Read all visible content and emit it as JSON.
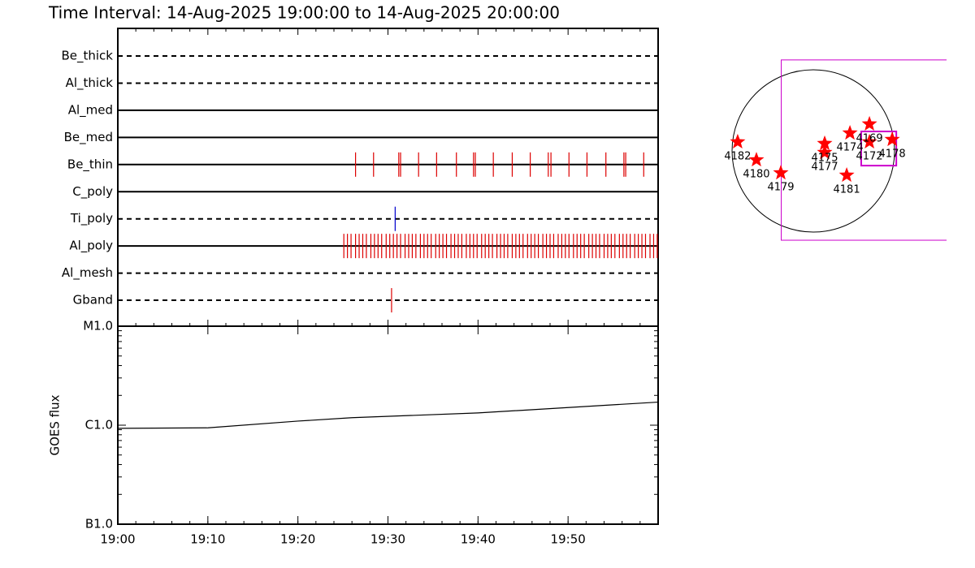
{
  "title": "Time Interval: 14-Aug-2025 19:00:00 to 14-Aug-2025 20:00:00",
  "chart_data": [
    {
      "type": "timeline",
      "categories": [
        "Be_thick",
        "Al_thick",
        "Al_med",
        "Be_med",
        "Be_thin",
        "C_poly",
        "Ti_poly",
        "Al_poly",
        "Al_mesh",
        "Gband"
      ],
      "styles": [
        "dashed",
        "dashed",
        "solid",
        "solid",
        "solid",
        "solid",
        "dashed",
        "solid",
        "dashed",
        "dashed"
      ],
      "events": [
        {
          "filter": "Be_thin",
          "color": "#dd0000",
          "x": [
            26.4,
            28.4,
            31.2,
            31.4,
            33.4,
            35.4,
            37.6,
            39.5,
            39.7,
            41.7,
            43.8,
            45.8,
            47.8,
            48.1,
            50.1,
            52.1,
            54.2,
            56.2,
            56.4,
            58.4
          ]
        },
        {
          "filter": "Ti_poly",
          "color": "#0000cc",
          "x": [
            30.8
          ]
        },
        {
          "filter": "Al_poly",
          "color": "#dd0000",
          "x": [
            25.1,
            25.5,
            25.9,
            26.4,
            26.8,
            27.2,
            27.6,
            28.1,
            28.5,
            28.9,
            29.3,
            29.8,
            30.2,
            30.6,
            31.0,
            31.4,
            31.9,
            32.3,
            32.7,
            33.1,
            33.6,
            34.0,
            34.4,
            34.8,
            35.3,
            35.7,
            36.1,
            36.5,
            37.0,
            37.4,
            37.8,
            38.2,
            38.7,
            39.1,
            39.5,
            39.9,
            40.4,
            40.8,
            41.2,
            41.6,
            42.1,
            42.5,
            42.9,
            43.3,
            43.8,
            44.2,
            44.6,
            45.0,
            45.5,
            45.9,
            46.3,
            46.7,
            47.2,
            47.6,
            48.0,
            48.4,
            48.9,
            49.3,
            49.7,
            50.1,
            50.6,
            51.0,
            51.4,
            51.8,
            52.3,
            52.7,
            53.1,
            53.5,
            54.0,
            54.4,
            54.8,
            55.2,
            55.7,
            56.1,
            56.5,
            56.9,
            57.4,
            57.8,
            58.2,
            58.6,
            59.1,
            59.5,
            59.9
          ]
        },
        {
          "filter": "Gband",
          "color": "#dd0000",
          "x": [
            30.4
          ]
        }
      ],
      "xlim": [
        0,
        60
      ]
    },
    {
      "type": "line",
      "ylabel": "GOES flux",
      "log_scale": true,
      "x": [
        0,
        10,
        20,
        26,
        40,
        60
      ],
      "values": [
        9.3e-07,
        9.4e-07,
        1.1e-06,
        1.19e-06,
        1.33e-06,
        1.71e-06
      ],
      "color": "#000000",
      "xlim": [
        0,
        60
      ],
      "xticks": [
        {
          "value": 0,
          "label": "19:00"
        },
        {
          "value": 10,
          "label": "19:10"
        },
        {
          "value": 20,
          "label": "19:20"
        },
        {
          "value": 30,
          "label": "19:30"
        },
        {
          "value": 40,
          "label": "19:40"
        },
        {
          "value": 50,
          "label": "19:50"
        }
      ],
      "ylim": [
        1e-07,
        1e-05
      ],
      "yticks": [
        {
          "value": 1e-07,
          "label": "B1.0"
        },
        {
          "value": 1e-06,
          "label": "C1.0"
        },
        {
          "value": 1e-05,
          "label": "M1.0"
        }
      ]
    },
    {
      "type": "map",
      "points": [
        {
          "label": "4182",
          "x": -884,
          "y": 105
        },
        {
          "label": "4180",
          "x": -665,
          "y": -105
        },
        {
          "label": "4179",
          "x": -380,
          "y": -257
        },
        {
          "label": "4175",
          "x": 133,
          "y": 86
        },
        {
          "label": "4177",
          "x": 133,
          "y": -19
        },
        {
          "label": "4174",
          "x": 428,
          "y": 209
        },
        {
          "label": "4169",
          "x": 656,
          "y": 314
        },
        {
          "label": "4172",
          "x": 656,
          "y": 105
        },
        {
          "label": "4178",
          "x": 922,
          "y": 133
        },
        {
          "label": "4181",
          "x": 390,
          "y": -285
        }
      ],
      "color": "#ff0000",
      "fov": [
        {
          "x": 680,
          "y": 10,
          "width": 2110,
          "height": 2110
        },
        {
          "x": 765,
          "y": 28,
          "width": 410,
          "height": 400
        }
      ],
      "fov_color": "#cc00cc"
    }
  ]
}
